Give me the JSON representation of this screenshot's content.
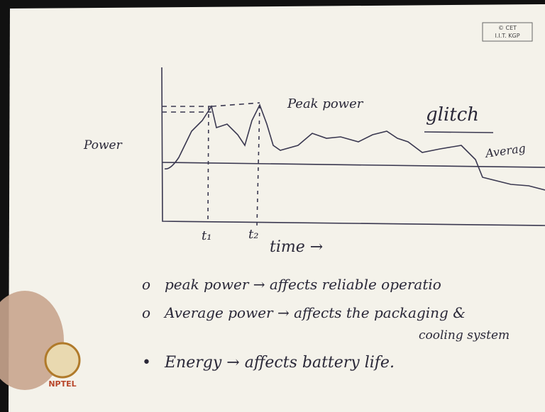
{
  "logo": {
    "line1": "© CET",
    "line2": "I.I.T. KGP"
  },
  "sketch": {
    "y_label": "Power",
    "peak_label": "Peak power",
    "glitch_label": "glitch",
    "average_label": "Averag",
    "t1": "t₁",
    "t2": "t₂",
    "x_label": "time →"
  },
  "notes": [
    {
      "bullet": "o",
      "text": "peak power → affects reliable operatio"
    },
    {
      "bullet": "o",
      "text": "Average power → affects the packaging &"
    },
    {
      "bullet": "",
      "text": "cooling system"
    },
    {
      "bullet": "•",
      "text": "Energy → affects battery life."
    }
  ],
  "watermark": "NPTEL"
}
